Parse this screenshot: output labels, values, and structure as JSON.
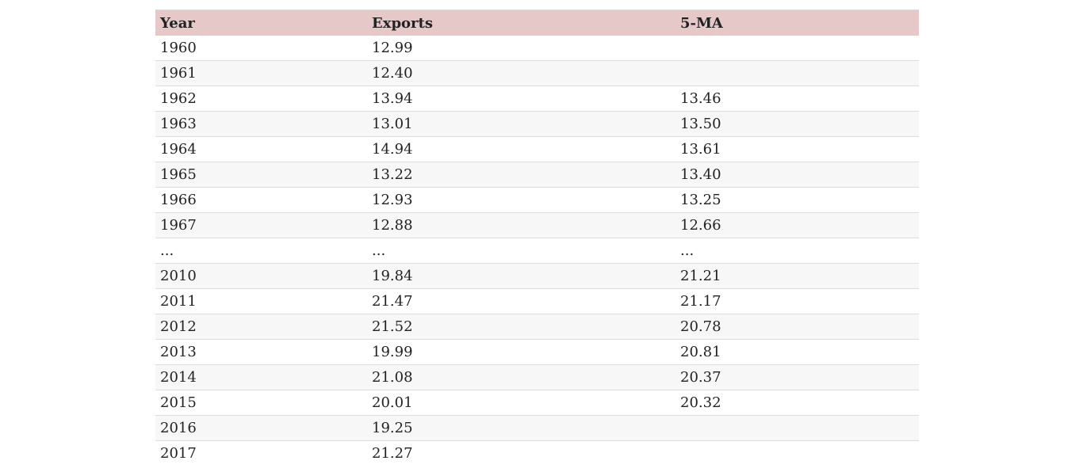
{
  "table": {
    "headers": [
      "Year",
      "Exports",
      "5-MA"
    ],
    "rows": [
      [
        "1960",
        "12.99",
        ""
      ],
      [
        "1961",
        "12.40",
        ""
      ],
      [
        "1962",
        "13.94",
        "13.46"
      ],
      [
        "1963",
        "13.01",
        "13.50"
      ],
      [
        "1964",
        "14.94",
        "13.61"
      ],
      [
        "1965",
        "13.22",
        "13.40"
      ],
      [
        "1966",
        "12.93",
        "13.25"
      ],
      [
        "1967",
        "12.88",
        "12.66"
      ],
      [
        "...",
        "...",
        "..."
      ],
      [
        "2010",
        "19.84",
        "21.21"
      ],
      [
        "2011",
        "21.47",
        "21.17"
      ],
      [
        "2012",
        "21.52",
        "20.78"
      ],
      [
        "2013",
        "19.99",
        "20.81"
      ],
      [
        "2014",
        "21.08",
        "20.37"
      ],
      [
        "2015",
        "20.01",
        "20.32"
      ],
      [
        "2016",
        "19.25",
        ""
      ],
      [
        "2017",
        "21.27",
        ""
      ]
    ]
  }
}
